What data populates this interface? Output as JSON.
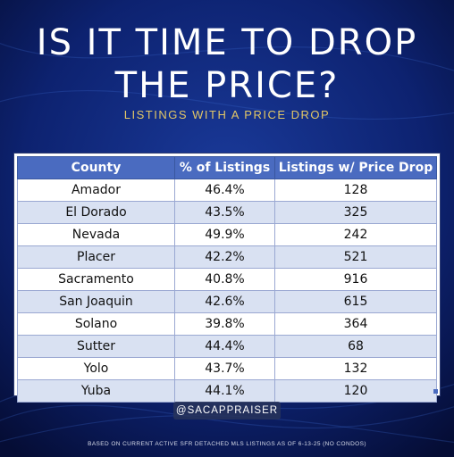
{
  "title_line1": "IS IT TIME TO DROP",
  "title_line2": "THE PRICE?",
  "subtitle": "LISTINGS WITH A PRICE DROP",
  "handle": "@SACAPPRAISER",
  "footnote": "BASED ON CURRENT ACTIVE SFR DETACHED MLS LISTINGS AS OF 6-13-25 (NO CONDOS)",
  "colors": {
    "background": "#0a1a4a",
    "header": "#4a6bc0",
    "row_alt": "#d9e1f2",
    "subtitle": "#e3c766"
  },
  "chart_data": {
    "type": "table",
    "columns": [
      "County",
      "% of Listings",
      "Listings w/ Price Drop"
    ],
    "rows": [
      [
        "Amador",
        "46.4%",
        "128"
      ],
      [
        "El Dorado",
        "43.5%",
        "325"
      ],
      [
        "Nevada",
        "49.9%",
        "242"
      ],
      [
        "Placer",
        "42.2%",
        "521"
      ],
      [
        "Sacramento",
        "40.8%",
        "916"
      ],
      [
        "San Joaquin",
        "42.6%",
        "615"
      ],
      [
        "Solano",
        "39.8%",
        "364"
      ],
      [
        "Sutter",
        "44.4%",
        "68"
      ],
      [
        "Yolo",
        "43.7%",
        "132"
      ],
      [
        "Yuba",
        "44.1%",
        "120"
      ]
    ]
  }
}
